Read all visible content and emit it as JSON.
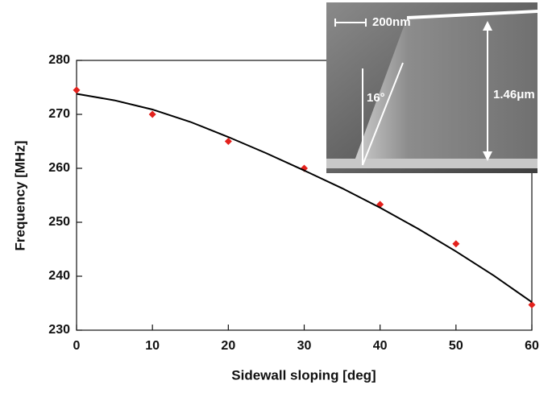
{
  "chart_data": {
    "type": "scatter",
    "xlabel": "Sidewall sloping [deg]",
    "ylabel": "Frequency [MHz]",
    "xlim": [
      0,
      60
    ],
    "ylim": [
      230,
      280
    ],
    "xticks": [
      0,
      10,
      20,
      30,
      40,
      50,
      60
    ],
    "yticks": [
      230,
      240,
      250,
      260,
      270,
      280
    ],
    "series": [
      {
        "type": "scatter",
        "color": "#e3211c",
        "x": [
          0,
          10,
          20,
          30,
          40,
          50,
          60
        ],
        "values": [
          274.5,
          270,
          265,
          260,
          253.3,
          246,
          234.7
        ]
      },
      {
        "type": "line",
        "color": "#000000",
        "x": [
          0,
          5,
          10,
          15,
          20,
          25,
          30,
          35,
          40,
          45,
          50,
          55,
          60
        ],
        "values": [
          273.8,
          272.6,
          270.9,
          268.6,
          265.8,
          262.8,
          259.6,
          256.3,
          252.7,
          248.8,
          244.6,
          240.1,
          235.2
        ]
      }
    ],
    "annotations": [
      "200nm",
      "1.46μm",
      "16°"
    ]
  }
}
